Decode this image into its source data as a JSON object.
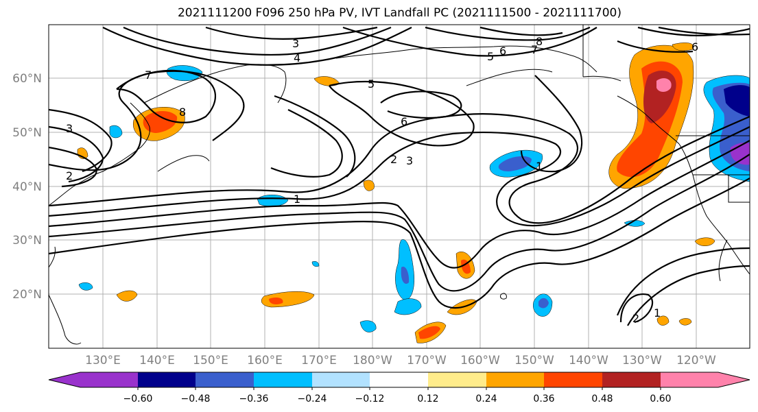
{
  "title": "2021111200 F096 250 hPa PV, IVT Landfall PC (2021111500 - 2021111700)",
  "map": {
    "lat_labels": [
      "60°N",
      "50°N",
      "40°N",
      "30°N",
      "20°N"
    ],
    "lon_labels": [
      "130°E",
      "140°E",
      "150°E",
      "160°E",
      "170°E",
      "180°W",
      "170°W",
      "160°W",
      "150°W",
      "140°W",
      "130°W",
      "120°W"
    ],
    "contour_labels": [
      "3",
      "4",
      "5",
      "6",
      "7",
      "8",
      "5",
      "6",
      "7",
      "8",
      "3",
      "2",
      "2",
      "3",
      "1",
      "1",
      "6",
      "1",
      "2"
    ]
  },
  "colorbar": {
    "tick_labels": [
      "−0.60",
      "−0.48",
      "−0.36",
      "−0.24",
      "−0.12",
      "0.12",
      "0.24",
      "0.36",
      "0.48",
      "0.60"
    ],
    "colors": [
      "#9932cc",
      "#00008b",
      "#3a5fcd",
      "#00bfff",
      "#b2e2ff",
      "#ffffff",
      "#ffec8b",
      "#ffa500",
      "#ff4500",
      "#b22222",
      "#ff82ab"
    ]
  }
}
